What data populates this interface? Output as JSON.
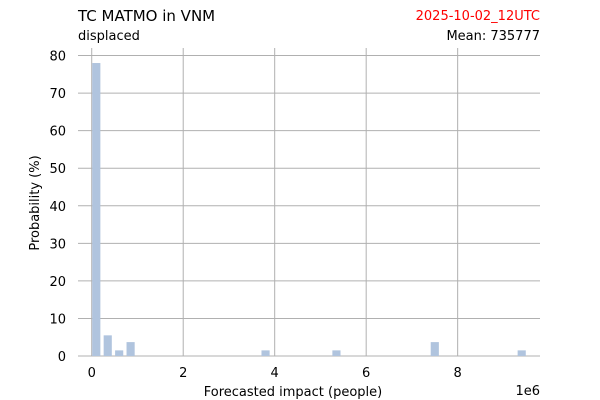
{
  "header": {
    "title": "TC MATMO in VNM",
    "subtitle": "displaced",
    "timestamp": "2025-10-02_12UTC",
    "mean_label": "Mean: 735777"
  },
  "colors": {
    "bar": "#b0c4de",
    "grid": "#b0b0b0",
    "timestamp": "#ff0000",
    "text": "#000000"
  },
  "chart_data": {
    "type": "bar",
    "title": "TC MATMO in VNM",
    "subtitle": "displaced",
    "xlabel": "Forecasted impact (people)",
    "ylabel": "Probability (%)",
    "x_scale_label": "1e6",
    "xlim": [
      -0.3,
      9.8
    ],
    "ylim": [
      0,
      82
    ],
    "grid": true,
    "x_ticks": [
      0,
      2,
      4,
      6,
      8
    ],
    "y_ticks": [
      0,
      10,
      20,
      30,
      40,
      50,
      60,
      70,
      80
    ],
    "bin_width": 0.2,
    "bars": [
      {
        "x": 0.1,
        "value": 78
      },
      {
        "x": 0.35,
        "value": 5.5
      },
      {
        "x": 0.6,
        "value": 1.5
      },
      {
        "x": 0.85,
        "value": 3.7
      },
      {
        "x": 3.8,
        "value": 1.5
      },
      {
        "x": 5.35,
        "value": 1.5
      },
      {
        "x": 7.5,
        "value": 3.7
      },
      {
        "x": 9.4,
        "value": 1.5
      }
    ]
  }
}
